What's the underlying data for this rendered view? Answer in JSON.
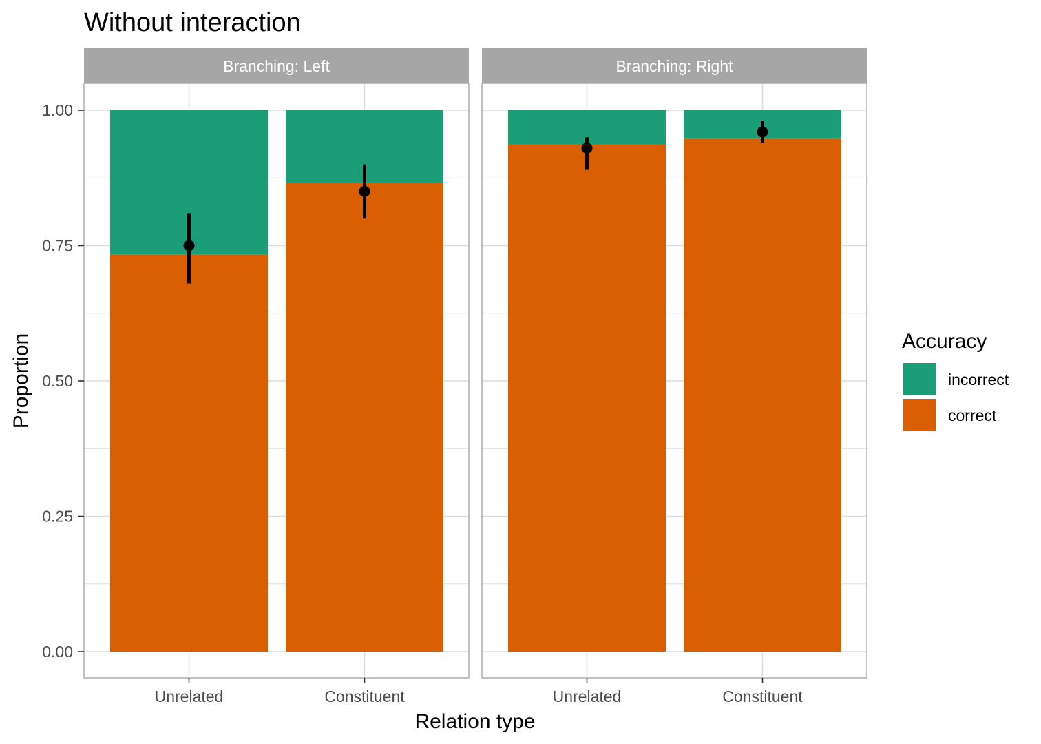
{
  "chart_data": {
    "type": "bar",
    "stacked": true,
    "title": "Without interaction",
    "xlabel": "Relation type",
    "ylabel": "Proportion",
    "ylim": [
      0,
      1.05
    ],
    "yticks": [
      "0.00",
      "0.25",
      "0.50",
      "0.75",
      "1.00"
    ],
    "categories": [
      "Unrelated",
      "Constituent"
    ],
    "colors": {
      "incorrect": "#1b9e77",
      "correct": "#d95f02",
      "strip": "#a6a6a6",
      "grid": "#dddddd",
      "point": "#000000"
    },
    "legend": {
      "title": "Accuracy",
      "position": "right",
      "entries": [
        "incorrect",
        "correct"
      ]
    },
    "panels": [
      {
        "label": "Branching: Left",
        "series": [
          {
            "name": "correct",
            "values": [
              0.733,
              0.866
            ]
          },
          {
            "name": "incorrect",
            "values": [
              0.267,
              0.134
            ]
          }
        ],
        "estimates": [
          {
            "category": "Unrelated",
            "value": 0.75,
            "lower": 0.68,
            "upper": 0.81
          },
          {
            "category": "Constituent",
            "value": 0.85,
            "lower": 0.8,
            "upper": 0.9
          }
        ]
      },
      {
        "label": "Branching: Right",
        "series": [
          {
            "name": "correct",
            "values": [
              0.937,
              0.947
            ]
          },
          {
            "name": "incorrect",
            "values": [
              0.063,
              0.053
            ]
          }
        ],
        "estimates": [
          {
            "category": "Unrelated",
            "value": 0.93,
            "lower": 0.89,
            "upper": 0.95
          },
          {
            "category": "Constituent",
            "value": 0.96,
            "lower": 0.94,
            "upper": 0.98
          }
        ]
      }
    ]
  }
}
